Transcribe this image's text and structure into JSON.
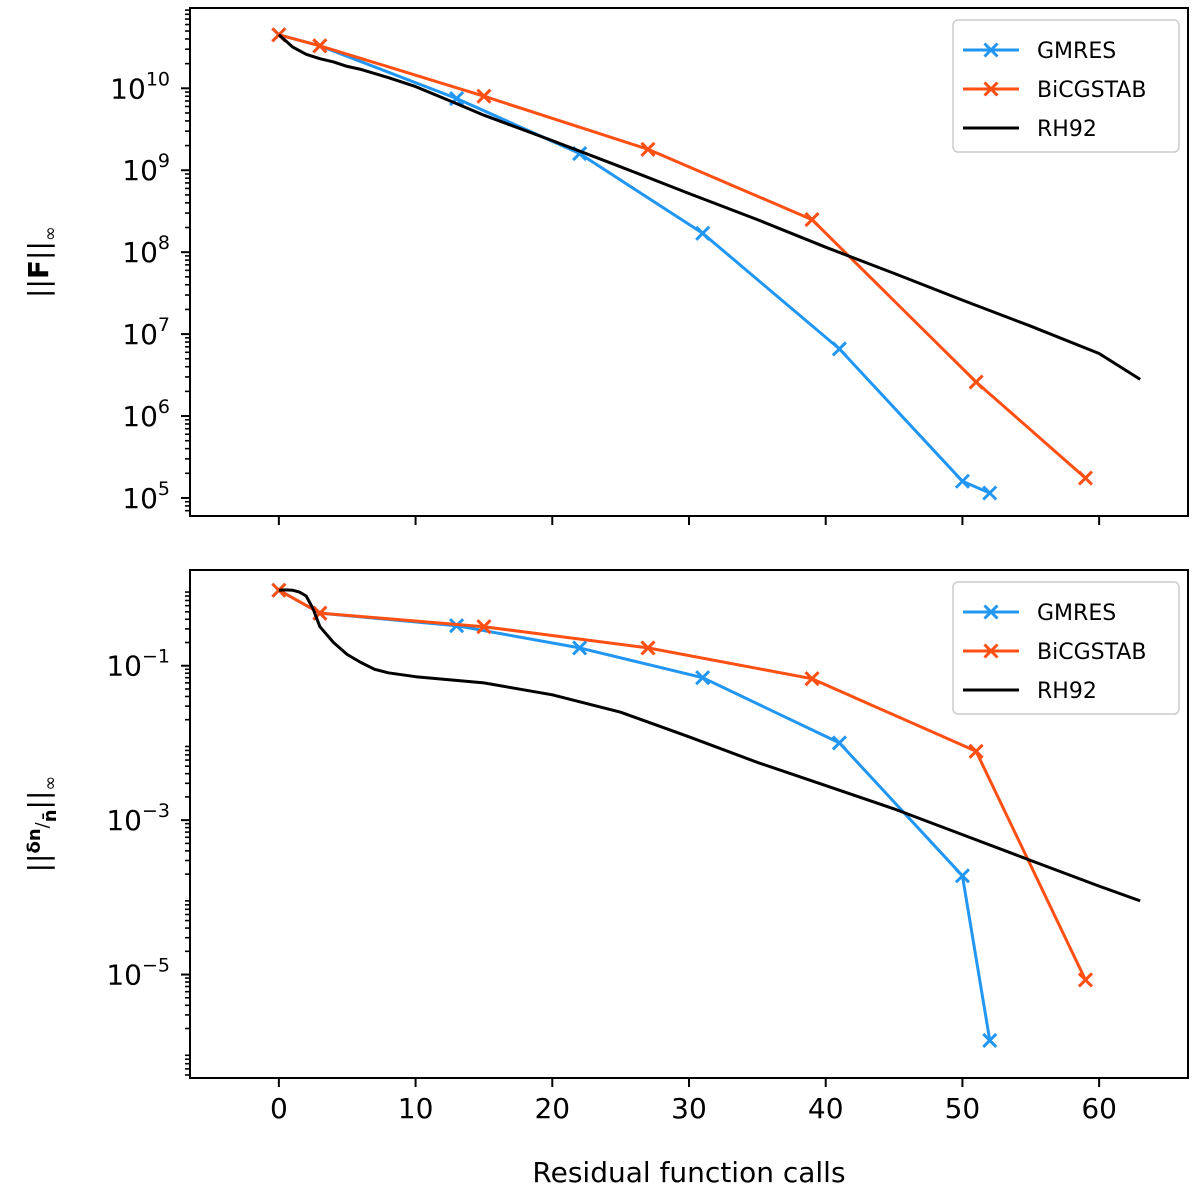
{
  "chart_data": [
    {
      "type": "line",
      "yscale": "log",
      "xlim": [
        -6.5,
        66.5
      ],
      "ylim_log10": [
        4.78,
        10.98
      ],
      "ylabel": "||F||∞",
      "xlabel": "",
      "grid": false,
      "legend_position": "top-right",
      "y_ticks": [
        {
          "base": "10",
          "exp": "5",
          "log10": 5
        },
        {
          "base": "10",
          "exp": "6",
          "log10": 6
        },
        {
          "base": "10",
          "exp": "7",
          "log10": 7
        },
        {
          "base": "10",
          "exp": "8",
          "log10": 8
        },
        {
          "base": "10",
          "exp": "9",
          "log10": 9
        },
        {
          "base": "10",
          "exp": "10",
          "log10": 10
        }
      ],
      "x_ticks": [
        0,
        10,
        20,
        30,
        40,
        50,
        60
      ],
      "series": [
        {
          "name": "GMRES",
          "color": "#2196f3",
          "marker": "x",
          "x": [
            0,
            3,
            13,
            22,
            31,
            41,
            50,
            52
          ],
          "y": [
            45000000000.0,
            33000000000.0,
            7500000000.0,
            1600000000.0,
            170000000.0,
            6600000.0,
            160000.0,
            115000.0
          ]
        },
        {
          "name": "BiCGSTAB",
          "color": "#ff4f12",
          "marker": "x",
          "x": [
            0,
            3,
            15,
            27,
            39,
            51,
            59
          ],
          "y": [
            45000000000.0,
            33000000000.0,
            8000000000.0,
            1800000000.0,
            250000000.0,
            2600000.0,
            175000.0
          ]
        },
        {
          "name": "RH92",
          "color": "#000000",
          "marker": "none",
          "x": [
            0,
            1,
            2,
            3,
            4,
            5,
            6,
            8,
            10,
            13,
            15,
            20,
            25,
            30,
            35,
            40,
            45,
            50,
            55,
            60,
            63
          ],
          "y": [
            45000000000.0,
            32000000000.0,
            26000000000.0,
            23000000000.0,
            21000000000.0,
            18500000000.0,
            17000000000.0,
            13500000000.0,
            10500000000.0,
            6500000000.0,
            4700000000.0,
            2300000000.0,
            1100000000.0,
            520000000.0,
            250000000.0,
            115000000.0,
            55000000.0,
            26000000.0,
            12500000.0,
            5800000.0,
            2800000.0
          ]
        }
      ]
    },
    {
      "type": "line",
      "yscale": "log",
      "xlim": [
        -6.5,
        66.5
      ],
      "ylim_log10": [
        -6.34,
        0.24
      ],
      "ylabel": "||δn/n̄||∞",
      "xlabel": "Residual function calls",
      "grid": false,
      "legend_position": "top-right",
      "y_ticks": [
        {
          "base": "10",
          "exp": "−1",
          "log10": -1
        },
        {
          "base": "10",
          "exp": "−3",
          "log10": -3
        },
        {
          "base": "10",
          "exp": "−5",
          "log10": -5
        }
      ],
      "x_ticks": [
        0,
        10,
        20,
        30,
        40,
        50,
        60
      ],
      "series": [
        {
          "name": "GMRES",
          "color": "#2196f3",
          "marker": "x",
          "x": [
            0,
            3,
            13,
            22,
            31,
            41,
            50,
            52
          ],
          "y": [
            0.95,
            0.48,
            0.33,
            0.17,
            0.07,
            0.01,
            0.00019,
            1.4e-06
          ]
        },
        {
          "name": "BiCGSTAB",
          "color": "#ff4f12",
          "marker": "x",
          "x": [
            0,
            3,
            15,
            27,
            39,
            51,
            59
          ],
          "y": [
            0.95,
            0.48,
            0.32,
            0.17,
            0.068,
            0.0078,
            8.5e-06
          ]
        },
        {
          "name": "RH92",
          "color": "#000000",
          "marker": "none",
          "x": [
            0,
            0.5,
            1,
            1.5,
            2,
            2.5,
            3,
            4,
            5,
            6,
            7,
            8,
            10,
            15,
            20,
            25,
            30,
            35,
            40,
            45,
            50,
            55,
            60,
            63
          ],
          "y": [
            0.95,
            0.96,
            0.95,
            0.9,
            0.8,
            0.55,
            0.32,
            0.2,
            0.14,
            0.11,
            0.09,
            0.081,
            0.072,
            0.06,
            0.042,
            0.025,
            0.012,
            0.0056,
            0.0028,
            0.0014,
            0.00065,
            0.0003,
            0.00014,
            9e-05
          ]
        }
      ]
    }
  ]
}
